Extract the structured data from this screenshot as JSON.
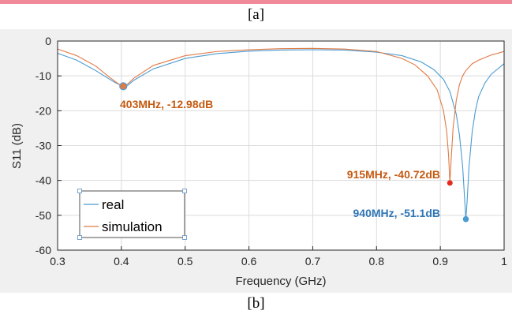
{
  "captions": {
    "top": "[a]",
    "bottom": "[b]"
  },
  "colors": {
    "real": "#4a9bd1",
    "simulation": "#e07b45",
    "annot_sim": "#c55a11",
    "annot_real": "#2e75b6",
    "marker_sim_915": "#e52b1f"
  },
  "chart_data": {
    "type": "line",
    "title": "",
    "xlabel": "Frequency (GHz)",
    "ylabel": "S11 (dB)",
    "xlim": [
      0.3,
      1.0
    ],
    "ylim": [
      -60,
      0
    ],
    "xticks": [
      "0.3",
      "0.4",
      "0.5",
      "0.6",
      "0.7",
      "0.8",
      "0.9",
      "1"
    ],
    "yticks": [
      "0",
      "-10",
      "-20",
      "-30",
      "-40",
      "-50",
      "-60"
    ],
    "grid": true,
    "legend_position": "bottom-left",
    "series": [
      {
        "name": "real",
        "x": [
          0.3,
          0.33,
          0.36,
          0.38,
          0.39,
          0.4,
          0.405,
          0.41,
          0.42,
          0.45,
          0.5,
          0.55,
          0.6,
          0.65,
          0.7,
          0.75,
          0.8,
          0.84,
          0.87,
          0.89,
          0.905,
          0.915,
          0.925,
          0.93,
          0.935,
          0.938,
          0.94,
          0.942,
          0.945,
          0.95,
          0.955,
          0.96,
          0.97,
          0.98,
          1.0
        ],
        "y": [
          -3.5,
          -5.5,
          -8.5,
          -10.8,
          -11.9,
          -12.8,
          -12.98,
          -12.7,
          -11.2,
          -8.0,
          -5.0,
          -3.6,
          -2.9,
          -2.6,
          -2.5,
          -2.6,
          -3.2,
          -4.2,
          -6.0,
          -8.2,
          -11.0,
          -14.5,
          -21.0,
          -27.0,
          -36.0,
          -45.0,
          -51.1,
          -46.0,
          -36.0,
          -26.0,
          -20.0,
          -16.0,
          -12.0,
          -9.5,
          -6.5
        ]
      },
      {
        "name": "simulation",
        "x": [
          0.3,
          0.33,
          0.36,
          0.38,
          0.39,
          0.4,
          0.403,
          0.41,
          0.42,
          0.45,
          0.5,
          0.55,
          0.6,
          0.65,
          0.7,
          0.75,
          0.8,
          0.84,
          0.86,
          0.88,
          0.895,
          0.905,
          0.91,
          0.913,
          0.915,
          0.917,
          0.92,
          0.925,
          0.93,
          0.935,
          0.94,
          0.95,
          0.96,
          0.98,
          1.0
        ],
        "y": [
          -2.3,
          -4.2,
          -7.2,
          -10.2,
          -11.6,
          -12.8,
          -12.98,
          -12.3,
          -10.6,
          -7.0,
          -4.2,
          -3.0,
          -2.5,
          -2.2,
          -2.1,
          -2.3,
          -3.0,
          -5.0,
          -6.8,
          -10.0,
          -14.0,
          -20.0,
          -26.0,
          -33.0,
          -40.72,
          -34.0,
          -25.0,
          -17.0,
          -12.5,
          -10.0,
          -8.5,
          -6.5,
          -5.5,
          -4.0,
          -3.0
        ]
      }
    ],
    "annotations": [
      {
        "text": "403MHz, -12.98dB",
        "x": 0.403,
        "y": -12.98,
        "series": "simulation"
      },
      {
        "text": "915MHz, -40.72dB",
        "x": 0.915,
        "y": -40.72,
        "series": "simulation"
      },
      {
        "text": "940MHz, -51.1dB",
        "x": 0.94,
        "y": -51.1,
        "series": "real"
      }
    ]
  }
}
